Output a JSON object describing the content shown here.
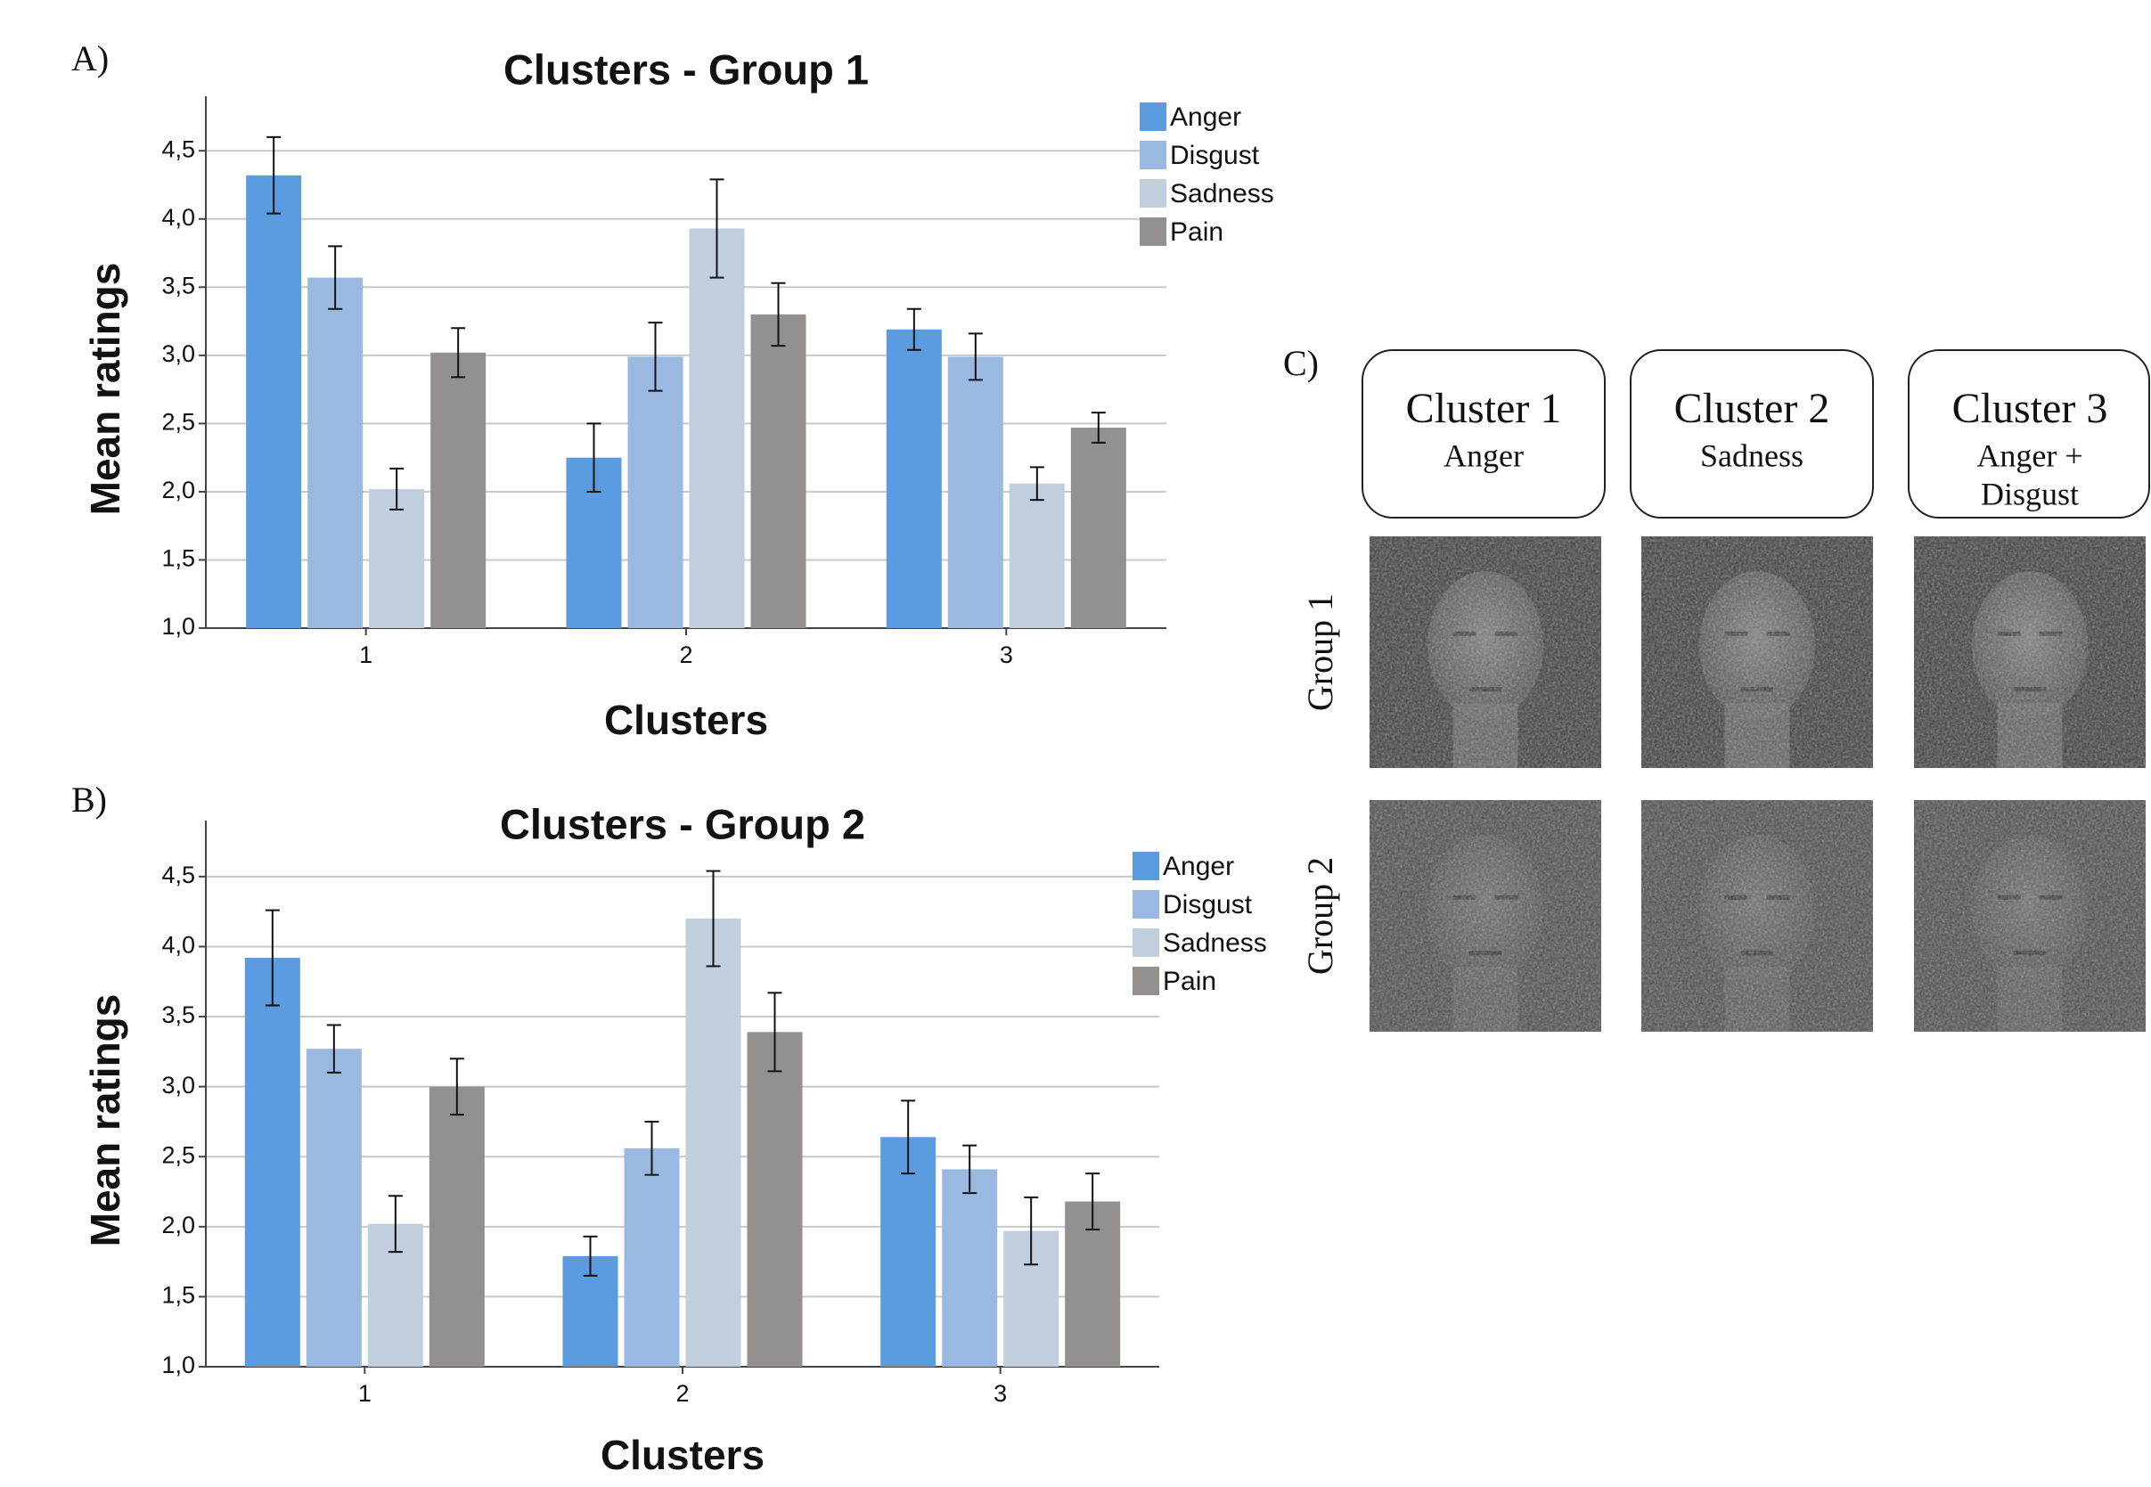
{
  "chart_data": [
    {
      "type": "bar",
      "panel_label": "A)",
      "title": "Clusters - Group 1",
      "x_label": "Clusters",
      "y_label": "Mean ratings",
      "categories": [
        "1",
        "2",
        "3"
      ],
      "series": [
        {
          "name": "Anger",
          "color": "#5b9be0",
          "values": [
            4.32,
            2.25,
            3.19
          ],
          "errors": [
            0.28,
            0.25,
            0.15
          ]
        },
        {
          "name": "Disgust",
          "color": "#99b9e0",
          "values": [
            3.57,
            2.99,
            2.99
          ],
          "errors": [
            0.23,
            0.25,
            0.17
          ]
        },
        {
          "name": "Sadness",
          "color": "#c0cedd",
          "values": [
            2.02,
            3.93,
            2.06
          ],
          "errors": [
            0.15,
            0.36,
            0.12
          ]
        },
        {
          "name": "Pain",
          "color": "#959090",
          "values": [
            3.02,
            3.3,
            2.47
          ],
          "errors": [
            0.18,
            0.23,
            0.11
          ]
        }
      ],
      "ylim": [
        1,
        4.9
      ],
      "yticks": [
        {
          "value": 1,
          "label": "1,0"
        },
        {
          "value": 1.5,
          "label": "1,5"
        },
        {
          "value": 2,
          "label": "2,0"
        },
        {
          "value": 2.5,
          "label": "2,5"
        },
        {
          "value": 3,
          "label": "3,0"
        },
        {
          "value": 3.5,
          "label": "3,5"
        },
        {
          "value": 4,
          "label": "4,0"
        },
        {
          "value": 4.5,
          "label": "4,5"
        }
      ],
      "grid": true,
      "legend": "upper right"
    },
    {
      "type": "bar",
      "panel_label": "B)",
      "title": "Clusters - Group 2",
      "x_label": "Clusters",
      "y_label": "Mean ratings",
      "categories": [
        "1",
        "2",
        "3"
      ],
      "series": [
        {
          "name": "Anger",
          "color": "#5b9be0",
          "values": [
            3.92,
            1.79,
            2.64
          ],
          "errors": [
            0.34,
            0.14,
            0.26
          ]
        },
        {
          "name": "Disgust",
          "color": "#99b9e0",
          "values": [
            3.27,
            2.56,
            2.41
          ],
          "errors": [
            0.17,
            0.19,
            0.17
          ]
        },
        {
          "name": "Sadness",
          "color": "#c0cedd",
          "values": [
            2.02,
            4.2,
            1.97
          ],
          "errors": [
            0.2,
            0.34,
            0.24
          ]
        },
        {
          "name": "Pain",
          "color": "#959090",
          "values": [
            3.0,
            3.39,
            2.18
          ],
          "errors": [
            0.2,
            0.28,
            0.2
          ]
        }
      ],
      "ylim": [
        1,
        4.9
      ],
      "yticks": [
        {
          "value": 1,
          "label": "1,0"
        },
        {
          "value": 1.5,
          "label": "1,5"
        },
        {
          "value": 2,
          "label": "2,0"
        },
        {
          "value": 2.5,
          "label": "2,5"
        },
        {
          "value": 3,
          "label": "3,0"
        },
        {
          "value": 3.5,
          "label": "3,5"
        },
        {
          "value": 4,
          "label": "4,0"
        },
        {
          "value": 4.5,
          "label": "4,5"
        }
      ],
      "grid": true,
      "legend": "upper right"
    }
  ],
  "face_panel": {
    "label": "C)",
    "clusters": [
      {
        "title": "Cluster 1",
        "subtitle": [
          "Anger"
        ]
      },
      {
        "title": "Cluster 2",
        "subtitle": [
          "Sadness"
        ]
      },
      {
        "title": "Cluster 3",
        "subtitle": [
          "Anger +",
          "Disgust"
        ]
      }
    ],
    "groups": [
      "Group 1",
      "Group 2"
    ]
  }
}
